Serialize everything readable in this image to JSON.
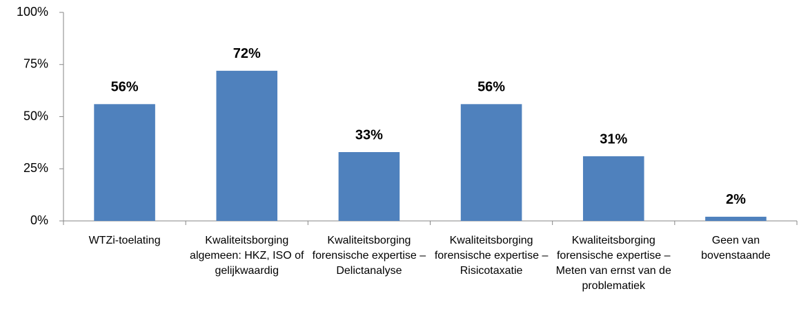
{
  "chart_data": {
    "type": "bar",
    "categories": [
      "WTZi-toelating",
      "Kwaliteitsborging algemeen: HKZ, ISO of gelijkwaardig",
      "Kwaliteitsborging forensische expertise – Delictanalyse",
      "Kwaliteitsborging forensische expertise – Risicotaxatie",
      "Kwaliteitsborging forensische expertise – Meten van ernst van de problematiek",
      "Geen van bovenstaande"
    ],
    "values": [
      56,
      72,
      33,
      56,
      31,
      2
    ],
    "value_labels": [
      "56%",
      "72%",
      "33%",
      "56%",
      "31%",
      "2%"
    ],
    "color": "#4f81bd",
    "ylim": [
      0,
      100
    ],
    "yticks": [
      {
        "value": 0,
        "label": "0%"
      },
      {
        "value": 25,
        "label": "25%"
      },
      {
        "value": 50,
        "label": "50%"
      },
      {
        "value": 75,
        "label": "75%"
      },
      {
        "value": 100,
        "label": "100%"
      }
    ],
    "grid": false
  }
}
